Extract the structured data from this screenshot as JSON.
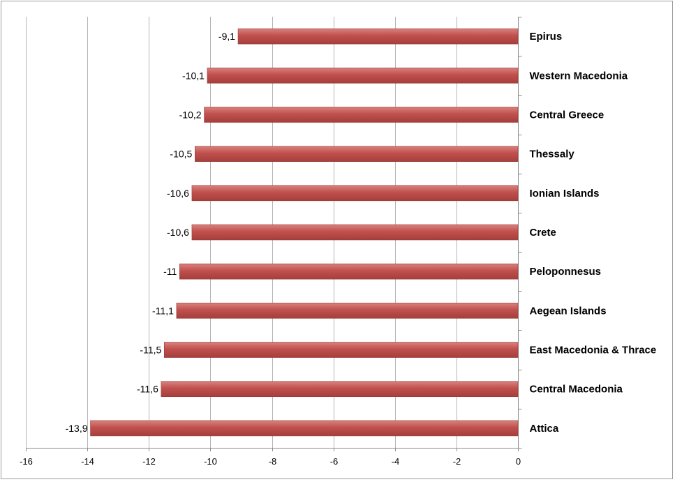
{
  "chart_data": {
    "type": "bar",
    "orientation": "horizontal",
    "categories": [
      "Epirus",
      "Western Macedonia",
      "Central Greece",
      "Thessaly",
      "Ionian Islands",
      "Crete",
      "Peloponnesus",
      "Aegean Islands",
      "East Macedonia & Thrace",
      "Central Macedonia",
      "Attica"
    ],
    "values": [
      -9.1,
      -10.1,
      -10.2,
      -10.5,
      -10.6,
      -10.6,
      -11,
      -11.1,
      -11.5,
      -11.6,
      -13.9
    ],
    "value_labels": [
      "-9,1",
      "-10,1",
      "-10,2",
      "-10,5",
      "-10,6",
      "-10,6",
      "-11",
      "-11,1",
      "-11,5",
      "-11,6",
      "-13,9"
    ],
    "xlim": [
      -16,
      0
    ],
    "x_ticks": [
      -16,
      -14,
      -12,
      -10,
      -8,
      -6,
      -4,
      -2,
      0
    ],
    "x_tick_labels": [
      "-16",
      "-14",
      "-12",
      "-10",
      "-8",
      "-6",
      "-4",
      "-2",
      "0"
    ],
    "grid": true,
    "bar_color": "#c0504d",
    "title": "",
    "xlabel": "",
    "ylabel": ""
  }
}
